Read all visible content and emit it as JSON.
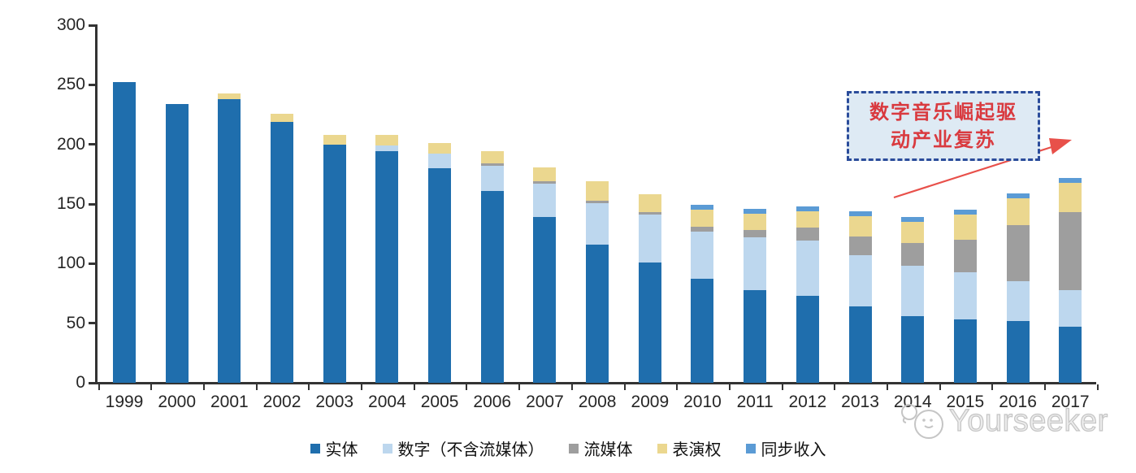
{
  "chart_data": {
    "type": "bar",
    "stacked": true,
    "title": "",
    "xlabel": "",
    "ylabel": "",
    "ylim": [
      0,
      300
    ],
    "yticks": [
      0,
      50,
      100,
      150,
      200,
      250,
      300
    ],
    "grid": false,
    "legend_position": "bottom",
    "x": [
      "1999",
      "2000",
      "2001",
      "2002",
      "2003",
      "2004",
      "2005",
      "2006",
      "2007",
      "2008",
      "2009",
      "2010",
      "2011",
      "2012",
      "2013",
      "2014",
      "2015",
      "2016",
      "2017"
    ],
    "series": [
      {
        "key": "physical",
        "name": "实体",
        "color": "#1F6EAD",
        "values": [
          252,
          234,
          238,
          219,
          200,
          194,
          180,
          161,
          139,
          116,
          101,
          87,
          78,
          73,
          64,
          56,
          53,
          52,
          47
        ]
      },
      {
        "key": "digital",
        "name": "数字（不含流媒体）",
        "color": "#BDD7EE",
        "values": [
          0,
          0,
          0,
          0,
          0,
          5,
          12,
          21,
          28,
          35,
          40,
          40,
          44,
          46,
          43,
          42,
          40,
          33,
          31
        ]
      },
      {
        "key": "streaming",
        "name": "流媒体",
        "color": "#9E9E9E",
        "values": [
          0,
          0,
          0,
          0,
          0,
          0,
          0,
          2,
          2,
          2,
          2,
          4,
          6,
          11,
          16,
          19,
          27,
          47,
          65
        ]
      },
      {
        "key": "performance",
        "name": "表演权",
        "color": "#EBD78F",
        "values": [
          0,
          0,
          5,
          7,
          8,
          9,
          9,
          10,
          12,
          16,
          15,
          14,
          14,
          14,
          17,
          18,
          21,
          23,
          25
        ]
      },
      {
        "key": "sync",
        "name": "同步收入",
        "color": "#5B9BD5",
        "values": [
          0,
          0,
          0,
          0,
          0,
          0,
          0,
          0,
          0,
          0,
          0,
          4,
          4,
          4,
          4,
          4,
          4,
          4,
          4
        ]
      }
    ],
    "totals": [
      252,
      234,
      243,
      226,
      208,
      208,
      201,
      194,
      181,
      169,
      158,
      149,
      146,
      148,
      144,
      139,
      145,
      159,
      172
    ]
  },
  "annotation": {
    "line1": "数字音乐崛起驱",
    "line2": "动产业复苏"
  },
  "watermark": {
    "text": "Yourseeker",
    "logo_icon": "cat-doodle-icon"
  },
  "colors": {
    "axis": "#333333",
    "tick_label": "#262626",
    "annotation_border": "#2B4C9B",
    "annotation_bg": "#DEEAF4",
    "annotation_text": "#D93A3F",
    "arrow": "#E8504A",
    "watermark": "#C5C5C5",
    "background": "#FFFFFF"
  }
}
